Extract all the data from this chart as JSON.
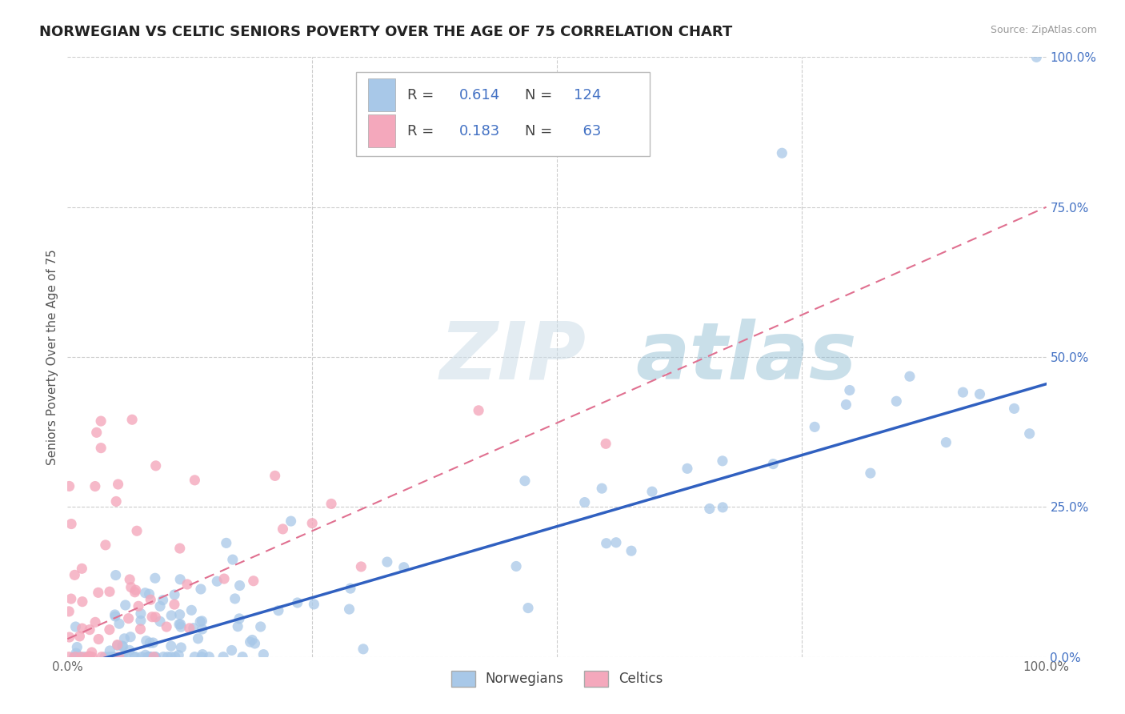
{
  "title": "NORWEGIAN VS CELTIC SENIORS POVERTY OVER THE AGE OF 75 CORRELATION CHART",
  "source": "Source: ZipAtlas.com",
  "ylabel": "Seniors Poverty Over the Age of 75",
  "norwegian_R": 0.614,
  "norwegian_N": 124,
  "celtic_R": 0.183,
  "celtic_N": 63,
  "norwegian_color": "#a8c8e8",
  "celtic_color": "#f4a8bc",
  "norwegian_line_color": "#3060c0",
  "celtic_line_color": "#e07090",
  "background_color": "#ffffff",
  "grid_color": "#cccccc",
  "watermark_zip_color": "#c8d8e8",
  "watermark_atlas_color": "#90b8d8",
  "xlim": [
    0,
    1
  ],
  "ylim": [
    0,
    1
  ],
  "tick_fontsize": 11,
  "axis_label_fontsize": 11,
  "title_fontsize": 13,
  "nor_line_start_y": -0.02,
  "nor_line_end_y": 0.455,
  "cel_line_start_y": 0.03,
  "cel_line_end_y": 0.75
}
